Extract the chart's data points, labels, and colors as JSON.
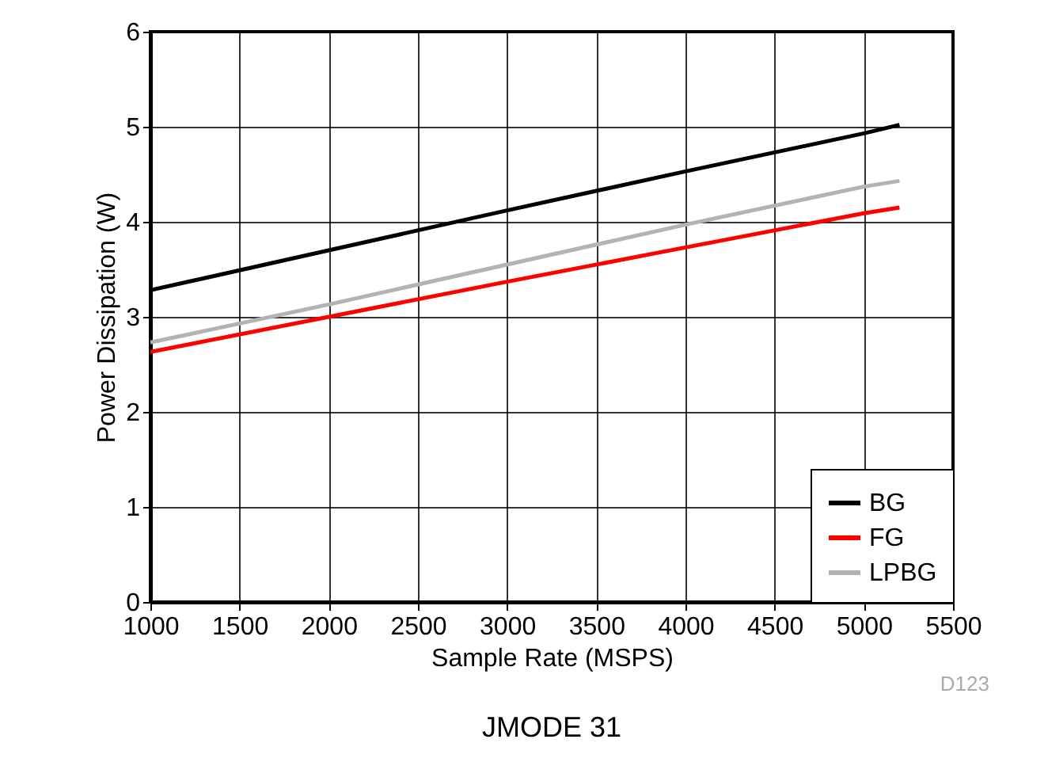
{
  "chart_data": {
    "type": "line",
    "title": "JMODE 31",
    "xlabel": "Sample Rate (MSPS)",
    "ylabel": "Power Dissipation (W)",
    "annotations": [
      "D123"
    ],
    "xlim": [
      1000,
      5500
    ],
    "xticks": [
      1000,
      1500,
      2000,
      2500,
      3000,
      3500,
      4000,
      4500,
      5000,
      5500
    ],
    "ylim": [
      0,
      6
    ],
    "yticks": [
      0,
      1,
      2,
      3,
      4,
      5,
      6
    ],
    "grid": true,
    "legend": "bottom right",
    "marker": "none",
    "line_style": "solid",
    "x": [
      1000,
      2000,
      3000,
      4000,
      5000,
      5200
    ],
    "series": [
      {
        "name": "BG",
        "color": "#000000",
        "values": [
          3.28,
          3.7,
          4.12,
          4.53,
          4.93,
          5.02
        ]
      },
      {
        "name": "FG",
        "color": "#ff0000",
        "values": [
          2.63,
          3.0,
          3.37,
          3.73,
          4.09,
          4.15
        ]
      },
      {
        "name": "LPBG",
        "color": "#b3b3b3",
        "values": [
          2.73,
          3.13,
          3.55,
          3.97,
          4.37,
          4.43
        ]
      }
    ]
  }
}
